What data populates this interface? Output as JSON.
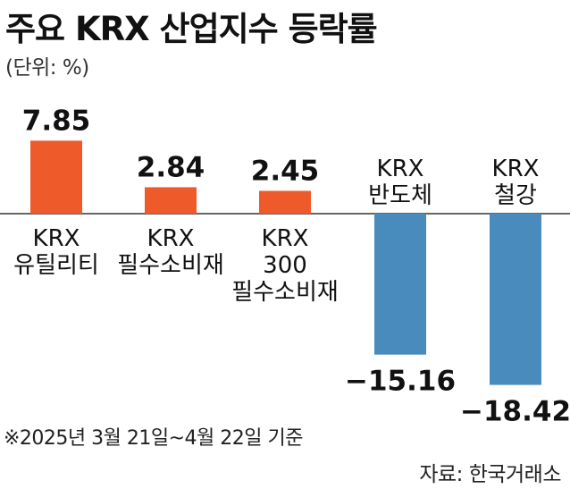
{
  "header": {
    "title": "주요 KRX 산업지수 등락률",
    "unit": "(단위: %)"
  },
  "footer": {
    "note": "※2025년 3월 21일~4월 22일 기준",
    "source": "자료: 한국거래소"
  },
  "colors": {
    "positive": "#EE5A2A",
    "negative": "#4A8BBE",
    "baseline": "#333333"
  },
  "chart_data": {
    "type": "bar",
    "title": "주요 KRX 산업지수 등락률",
    "unit": "%",
    "categories": [
      [
        "KRX",
        "유틸리티"
      ],
      [
        "KRX",
        "필수소비재"
      ],
      [
        "KRX",
        "300",
        "필수소비재"
      ],
      [
        "KRX",
        "반도체"
      ],
      [
        "KRX",
        "철강"
      ]
    ],
    "values": [
      7.85,
      2.84,
      2.45,
      -15.16,
      -18.42
    ],
    "value_labels": [
      "7.85",
      "2.84",
      "2.45",
      "−15.16",
      "−18.42"
    ],
    "ylim": [
      -20,
      10
    ],
    "grid": false,
    "legend": "none"
  }
}
